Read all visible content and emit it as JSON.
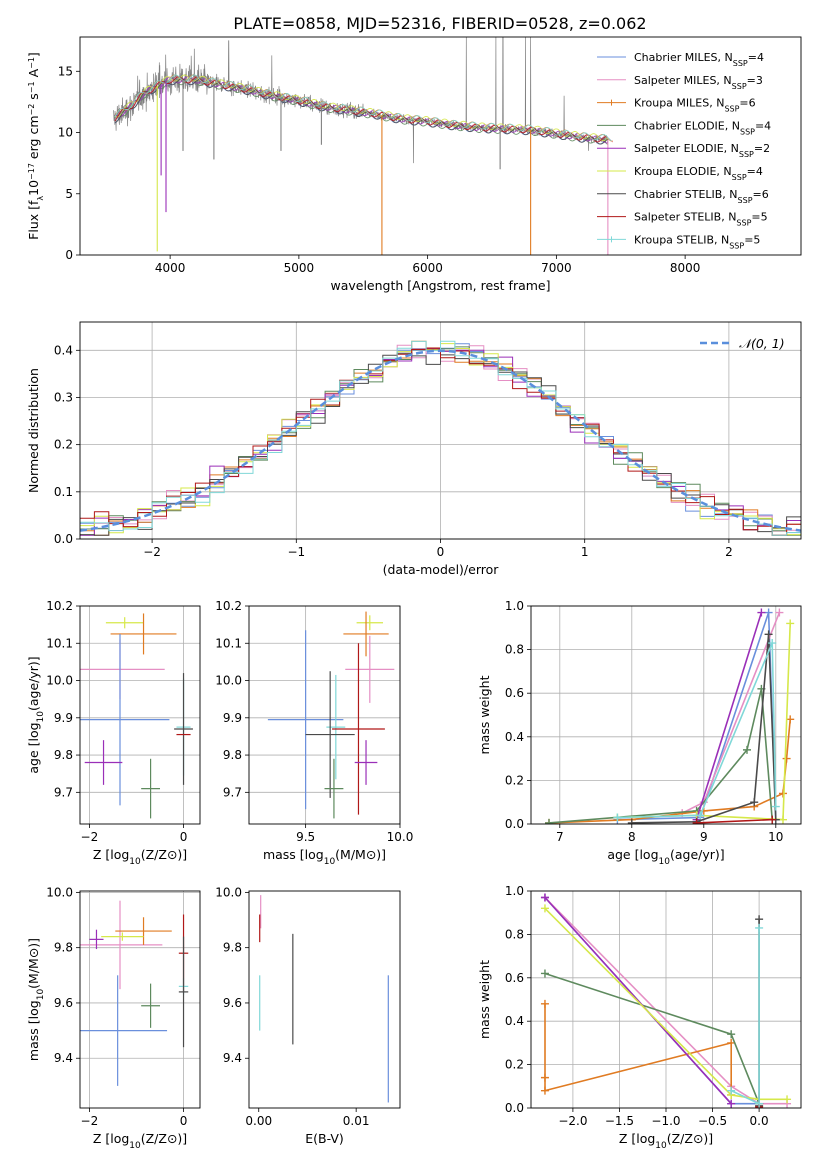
{
  "title": "PLATE=0858, MJD=52316, FIBERID=0528, z=0.062",
  "colors": {
    "Chabrier MILES": "#6a8fdc",
    "Salpeter MILES": "#e58fc4",
    "Kroupa MILES": "#e07b22",
    "Chabrier ELODIE": "#5e8a5e",
    "Salpeter ELODIE": "#9a2fb8",
    "Kroupa ELODIE": "#d6e84a",
    "Chabrier STELIB": "#4a4a4a",
    "Salpeter STELIB": "#b01818",
    "Kroupa STELIB": "#80d8d8",
    "data": "#808080",
    "normal": "#5a8fdc"
  },
  "chart_data": [
    {
      "id": "spectrum",
      "type": "line",
      "xlabel": "wavelength [Angstrom, rest frame]",
      "ylabel": "Flux [f$_\\lambda$10$^{-17}$ erg cm$^{-2}$ s$^{-1}$ A$^{-1}$]",
      "xlim": [
        3300,
        8900
      ],
      "ylim": [
        0,
        17.8
      ],
      "xticks": [
        4000,
        5000,
        6000,
        7000,
        8000
      ],
      "yticks": [
        0,
        5,
        10,
        15
      ],
      "grid": false,
      "legend_position": "top-right",
      "legend": [
        {
          "model": "Chabrier MILES",
          "label": "Chabrier MILES, N",
          "sub": "SSP",
          "n": "=4",
          "marker": false
        },
        {
          "model": "Salpeter MILES",
          "label": "Salpeter MILES, N",
          "sub": "SSP",
          "n": "=3",
          "marker": false
        },
        {
          "model": "Kroupa MILES",
          "label": "Kroupa MILES, N",
          "sub": "SSP",
          "n": "=6",
          "marker": true
        },
        {
          "model": "Chabrier ELODIE",
          "label": "Chabrier ELODIE, N",
          "sub": "SSP",
          "n": "=4",
          "marker": false
        },
        {
          "model": "Salpeter ELODIE",
          "label": "Salpeter ELODIE, N",
          "sub": "SSP",
          "n": "=2",
          "marker": false
        },
        {
          "model": "Kroupa ELODIE",
          "label": "Kroupa ELODIE, N",
          "sub": "SSP",
          "n": "=4",
          "marker": false
        },
        {
          "model": "Chabrier STELIB",
          "label": "Chabrier STELIB, N",
          "sub": "SSP",
          "n": "=6",
          "marker": false
        },
        {
          "model": "Salpeter STELIB",
          "label": "Salpeter STELIB, N",
          "sub": "SSP",
          "n": "=5",
          "marker": false
        },
        {
          "model": "Kroupa STELIB",
          "label": "Kroupa STELIB, N",
          "sub": "SSP",
          "n": "=5",
          "marker": true
        }
      ],
      "continuum": {
        "x": [
          3550,
          3700,
          3800,
          3900,
          4000,
          4200,
          4400,
          4600,
          4800,
          5000,
          5200,
          5400,
          5600,
          5800,
          6000,
          6200,
          6400,
          6600,
          6800,
          7000,
          7200,
          7400
        ],
        "y": [
          11.0,
          12.2,
          13.2,
          13.8,
          14.3,
          14.3,
          13.9,
          13.5,
          13.0,
          12.6,
          12.1,
          11.8,
          11.5,
          11.1,
          10.9,
          10.6,
          10.4,
          10.3,
          10.2,
          9.9,
          9.6,
          9.4
        ]
      },
      "features": [
        {
          "x": 3900,
          "y": 0.3,
          "model": "Kroupa ELODIE"
        },
        {
          "x": 3930,
          "y": 6.5,
          "model": "Salpeter ELODIE"
        },
        {
          "x": 3968,
          "y": 3.5,
          "model": "Salpeter ELODIE"
        },
        {
          "x": 4100,
          "y": 8.5,
          "model": "data"
        },
        {
          "x": 4340,
          "y": 7.8,
          "model": "data"
        },
        {
          "x": 4861,
          "y": 8.5,
          "model": "data"
        },
        {
          "x": 5175,
          "y": 9.0,
          "model": "data"
        },
        {
          "x": 5645,
          "y": 0.0,
          "model": "Kroupa MILES"
        },
        {
          "x": 6563,
          "y": 7.0,
          "model": "data"
        },
        {
          "x": 6800,
          "y": 0.0,
          "model": "Kroupa MILES"
        },
        {
          "x": 7400,
          "y": 0.0,
          "model": "Salpeter MILES"
        }
      ],
      "data_spikes": [
        {
          "x": 4455,
          "y": 17.5
        },
        {
          "x": 4790,
          "y": 16.3
        },
        {
          "x": 5890,
          "y": 7.5
        },
        {
          "x": 6300,
          "y": 17.8
        },
        {
          "x": 6530,
          "y": 17.8
        },
        {
          "x": 6585,
          "y": 17.8
        },
        {
          "x": 6760,
          "y": 17.8
        },
        {
          "x": 6800,
          "y": 17.8
        },
        {
          "x": 7060,
          "y": 13.0
        },
        {
          "x": 7250,
          "y": 8.5
        }
      ]
    },
    {
      "id": "residuals",
      "type": "line",
      "xlabel": "(data-model)/error",
      "ylabel": "Normed distribution",
      "xlim": [
        -2.5,
        2.5
      ],
      "ylim": [
        0,
        0.46
      ],
      "xticks": [
        -2,
        -1,
        0,
        1,
        2
      ],
      "xticklabels": [
        "−2",
        "−1",
        "0",
        "1",
        "2"
      ],
      "yticks": [
        0.0,
        0.1,
        0.2,
        0.3,
        0.4
      ],
      "yticklabels": [
        "0.0",
        "0.1",
        "0.2",
        "0.3",
        "0.4"
      ],
      "grid": true,
      "legend_position": "top-right",
      "normal_label": "𝒩(0, 1)",
      "bin_width": 0.1
    },
    {
      "id": "age-vs-Z",
      "type": "scatter",
      "xlabel": "Z [log$_{10}$(Z/Z$_\\odot$)]",
      "ylabel": "age  [log$_{10}$(age/yr)]",
      "xlim": [
        -2.2,
        0.35
      ],
      "ylim": [
        9.615,
        10.2
      ],
      "xticks": [
        -2,
        0
      ],
      "xticklabels": [
        "−2",
        "0"
      ],
      "yticks": [
        9.7,
        9.8,
        9.9,
        10.0,
        10.1,
        10.2
      ],
      "yticklabels": [
        "9.7",
        "9.8",
        "9.9",
        "10.0",
        "10.1",
        "10.2"
      ],
      "grid": true,
      "points": [
        {
          "model": "Kroupa ELODIE",
          "x": -1.25,
          "y": 10.155,
          "xerr": 0.4,
          "yerr": 0.015
        },
        {
          "model": "Kroupa MILES",
          "x": -0.85,
          "y": 10.125,
          "xerr": 0.7,
          "yerr": 0.055
        },
        {
          "model": "Salpeter MILES",
          "x": -1.35,
          "y": 10.03,
          "xerr": 0.95,
          "yerr": 0.08
        },
        {
          "model": "Kroupa STELIB",
          "x": 0.0,
          "y": 9.875,
          "xerr": 0.15,
          "yerr": 0.13
        },
        {
          "model": "Chabrier MILES",
          "x": -1.35,
          "y": 9.895,
          "xerr": 1.05,
          "yerr": 0.23
        },
        {
          "model": "Chabrier STELIB",
          "x": 0.0,
          "y": 9.87,
          "xerr": 0.2,
          "yerr": 0.15
        },
        {
          "model": "Salpeter STELIB",
          "x": 0.0,
          "y": 9.855,
          "xerr": 0.15,
          "yerr": 0.0
        },
        {
          "model": "Salpeter ELODIE",
          "x": -1.7,
          "y": 9.78,
          "xerr": 0.4,
          "yerr": 0.06
        },
        {
          "model": "Chabrier ELODIE",
          "x": -0.7,
          "y": 9.71,
          "xerr": 0.2,
          "yerr": 0.08
        }
      ]
    },
    {
      "id": "age-vs-mass",
      "type": "scatter",
      "xlabel": "mass [log$_{10}$(M/M$_\\odot$)]",
      "ylabel": "",
      "xlim": [
        9.2,
        10.0
      ],
      "ylim": [
        9.615,
        10.2
      ],
      "xticks": [
        9.5,
        10.0
      ],
      "xticklabels": [
        "9.5",
        "10.0"
      ],
      "yticks": [
        9.7,
        9.8,
        9.9,
        10.0,
        10.1,
        10.2
      ],
      "yticklabels": [
        "9.7",
        "9.8",
        "9.9",
        "10.0",
        "10.1",
        "10.2"
      ],
      "grid": true,
      "points": [
        {
          "model": "Kroupa ELODIE",
          "x": 9.84,
          "y": 10.155,
          "xerr": 0.07,
          "yerr": 0.02
        },
        {
          "model": "Kroupa MILES",
          "x": 9.82,
          "y": 10.125,
          "xerr": 0.12,
          "yerr": 0.06
        },
        {
          "model": "Salpeter MILES",
          "x": 9.84,
          "y": 10.03,
          "xerr": 0.13,
          "yerr": 0.09
        },
        {
          "model": "Chabrier MILES",
          "x": 9.5,
          "y": 9.895,
          "xerr": 0.2,
          "yerr": 0.24
        },
        {
          "model": "Kroupa STELIB",
          "x": 9.66,
          "y": 9.875,
          "xerr": 0.05,
          "yerr": 0.14
        },
        {
          "model": "Chabrier STELIB",
          "x": 9.63,
          "y": 9.855,
          "xerr": 0.13,
          "yerr": 0.17
        },
        {
          "model": "Salpeter STELIB",
          "x": 9.78,
          "y": 9.87,
          "xerr": 0.14,
          "yerr": 0.23
        },
        {
          "model": "Salpeter ELODIE",
          "x": 9.82,
          "y": 9.78,
          "xerr": 0.06,
          "yerr": 0.06
        },
        {
          "model": "Chabrier ELODIE",
          "x": 9.65,
          "y": 9.71,
          "xerr": 0.05,
          "yerr": 0.08
        }
      ]
    },
    {
      "id": "weight-vs-age",
      "type": "line",
      "xlabel": "age  [log$_{10}$(age/yr)]",
      "ylabel": "mass weight",
      "xlim": [
        6.6,
        10.35
      ],
      "ylim": [
        0,
        1.0
      ],
      "xticks": [
        7,
        8,
        9,
        10
      ],
      "yticks": [
        0.0,
        0.2,
        0.4,
        0.6,
        0.8,
        1.0
      ],
      "yticklabels": [
        "0.0",
        "0.2",
        "0.4",
        "0.6",
        "0.8",
        "1.0"
      ],
      "grid": true,
      "series": [
        {
          "model": "Chabrier MILES",
          "x": [
            7.8,
            8.95,
            9.9,
            10.0
          ],
          "y": [
            0.02,
            0.03,
            0.97,
            0.02
          ]
        },
        {
          "model": "Salpeter MILES",
          "x": [
            8.7,
            9.0,
            10.05
          ],
          "y": [
            0.05,
            0.1,
            0.97
          ]
        },
        {
          "model": "Kroupa MILES",
          "x": [
            6.85,
            8.0,
            9.0,
            9.7,
            10.1,
            10.15,
            10.2
          ],
          "y": [
            0.005,
            0.02,
            0.06,
            0.08,
            0.14,
            0.3,
            0.48
          ]
        },
        {
          "model": "Chabrier ELODIE",
          "x": [
            6.85,
            8.9,
            9.6,
            9.8,
            9.95
          ],
          "y": [
            0.005,
            0.06,
            0.34,
            0.62,
            0.02
          ]
        },
        {
          "model": "Salpeter ELODIE",
          "x": [
            8.9,
            9.8
          ],
          "y": [
            0.02,
            0.97
          ]
        },
        {
          "model": "Kroupa ELODIE",
          "x": [
            7.8,
            8.9,
            10.1,
            10.2
          ],
          "y": [
            0.03,
            0.04,
            0.02,
            0.92
          ]
        },
        {
          "model": "Chabrier STELIB",
          "x": [
            8.0,
            8.9,
            9.7,
            9.9,
            10.0
          ],
          "y": [
            0.005,
            0.01,
            0.1,
            0.87,
            0.02
          ]
        },
        {
          "model": "Salpeter STELIB",
          "x": [
            8.9,
            9.95
          ],
          "y": [
            0.005,
            0.02
          ]
        },
        {
          "model": "Kroupa STELIB",
          "x": [
            7.8,
            8.95,
            9.95,
            10.0
          ],
          "y": [
            0.03,
            0.04,
            0.83,
            0.08
          ]
        }
      ]
    },
    {
      "id": "mass-vs-Z",
      "type": "scatter",
      "xlabel": "Z [log$_{10}$(Z/Z$_\\odot$)]",
      "ylabel": "mass [log$_{10}$(M/M$_\\odot$)]",
      "xlim": [
        -2.2,
        0.35
      ],
      "ylim": [
        9.22,
        10.005
      ],
      "xticks": [
        -2,
        0
      ],
      "xticklabels": [
        "−2",
        "0"
      ],
      "yticks": [
        9.4,
        9.6,
        9.8,
        10.0
      ],
      "yticklabels": [
        "9.4",
        "9.6",
        "9.8",
        "10.0"
      ],
      "grid": true,
      "points": [
        {
          "model": "Salpeter MILES",
          "x": -1.35,
          "y": 9.81,
          "xerr": 0.9,
          "yerr": 0.16
        },
        {
          "model": "Kroupa MILES",
          "x": -0.85,
          "y": 9.86,
          "xerr": 0.6,
          "yerr": 0.05
        },
        {
          "model": "Salpeter ELODIE",
          "x": -1.85,
          "y": 9.83,
          "xerr": 0.15,
          "yerr": 0.035
        },
        {
          "model": "Kroupa ELODIE",
          "x": -1.3,
          "y": 9.84,
          "xerr": 0.45,
          "yerr": 0.015
        },
        {
          "model": "Salpeter STELIB",
          "x": 0.0,
          "y": 9.78,
          "xerr": 0.1,
          "yerr": 0.14
        },
        {
          "model": "Kroupa STELIB",
          "x": 0.0,
          "y": 9.66,
          "xerr": 0.1,
          "yerr": 0.03
        },
        {
          "model": "Chabrier STELIB",
          "x": 0.0,
          "y": 9.64,
          "xerr": 0.1,
          "yerr": 0.2
        },
        {
          "model": "Chabrier ELODIE",
          "x": -0.7,
          "y": 9.59,
          "xerr": 0.2,
          "yerr": 0.08
        },
        {
          "model": "Chabrier MILES",
          "x": -1.4,
          "y": 9.5,
          "xerr": 1.05,
          "yerr": 0.2
        }
      ]
    },
    {
      "id": "mass-vs-ebv",
      "type": "scatter",
      "xlabel": "E(B-V)",
      "ylabel": "",
      "xlim": [
        -0.001,
        0.0145
      ],
      "ylim": [
        9.22,
        10.005
      ],
      "xticks": [
        0.0,
        0.01
      ],
      "xticklabels": [
        "0.00",
        "0.01"
      ],
      "yticks": [
        9.4,
        9.6,
        9.8,
        10.0
      ],
      "yticklabels": [
        "9.4",
        "9.6",
        "9.8",
        "10.0"
      ],
      "grid": false,
      "points": [
        {
          "model": "Salpeter MILES",
          "x": 0.0002,
          "y": 9.93,
          "xerr": 0,
          "yerr": 0.06
        },
        {
          "model": "Salpeter STELIB",
          "x": 0.0001,
          "y": 9.87,
          "xerr": 0,
          "yerr": 0.05
        },
        {
          "model": "Kroupa STELIB",
          "x": 0.0001,
          "y": 9.6,
          "xerr": 0,
          "yerr": 0.1
        },
        {
          "model": "Chabrier STELIB",
          "x": 0.0035,
          "y": 9.65,
          "xerr": 0,
          "yerr": 0.2
        },
        {
          "model": "Chabrier MILES",
          "x": 0.0133,
          "y": 9.47,
          "xerr": 0,
          "yerr": 0.23
        }
      ]
    },
    {
      "id": "weight-vs-Z",
      "type": "line",
      "xlabel": "Z [log$_{10}$(Z/Z$_\\odot$)]",
      "ylabel": "mass weight",
      "xlim": [
        -2.45,
        0.45
      ],
      "ylim": [
        0,
        1.0
      ],
      "xticks": [
        -2.0,
        -1.5,
        -1.0,
        -0.5,
        0.0
      ],
      "xticklabels": [
        "−2.0",
        "−1.5",
        "−1.0",
        "−0.5",
        "0.0"
      ],
      "yticks": [
        0.0,
        0.2,
        0.4,
        0.6,
        0.8,
        1.0
      ],
      "yticklabels": [
        "0.0",
        "0.2",
        "0.4",
        "0.6",
        "0.8",
        "1.0"
      ],
      "grid": true,
      "series": [
        {
          "model": "Chabrier MILES",
          "x": [
            -2.3,
            -0.3,
            0.0
          ],
          "y": [
            0.97,
            0.02,
            0.02
          ]
        },
        {
          "model": "Salpeter MILES",
          "x": [
            -2.3,
            -0.3,
            0.0,
            0.3
          ],
          "y": [
            0.97,
            0.1,
            0.02,
            0.02
          ]
        },
        {
          "model": "Kroupa MILES",
          "x": [
            -2.3,
            -2.3,
            -2.3,
            -0.3,
            -0.3
          ],
          "y": [
            0.48,
            0.14,
            0.08,
            0.3,
            0.06
          ]
        },
        {
          "model": "Chabrier ELODIE",
          "x": [
            -2.3,
            -0.3,
            0.0
          ],
          "y": [
            0.62,
            0.34,
            0.02
          ]
        },
        {
          "model": "Salpeter ELODIE",
          "x": [
            -2.3,
            -0.3
          ],
          "y": [
            0.97,
            0.02
          ]
        },
        {
          "model": "Kroupa ELODIE",
          "x": [
            -2.3,
            -0.3,
            0.0,
            0.3
          ],
          "y": [
            0.92,
            0.06,
            0.04,
            0.04
          ]
        },
        {
          "model": "Chabrier STELIB",
          "x": [
            0.0,
            0.0
          ],
          "y": [
            0.87,
            0.01
          ]
        },
        {
          "model": "Salpeter STELIB",
          "x": [
            0.0,
            0.0
          ],
          "y": [
            0.02,
            0.005
          ]
        },
        {
          "model": "Kroupa STELIB",
          "x": [
            -0.3,
            0.0,
            0.0
          ],
          "y": [
            0.08,
            0.02,
            0.83
          ]
        }
      ]
    }
  ]
}
